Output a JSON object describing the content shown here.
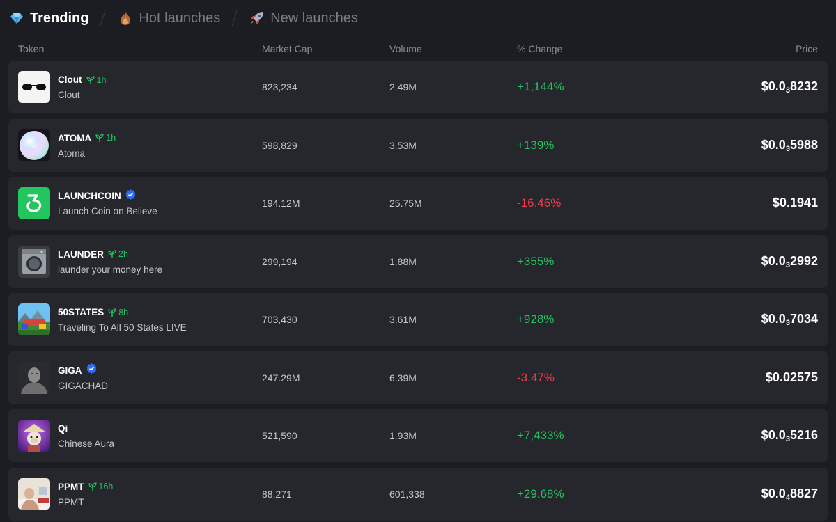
{
  "tabs": [
    {
      "label": "Trending",
      "icon": "gem-icon",
      "active": true
    },
    {
      "label": "Hot launches",
      "icon": "fire-icon",
      "active": false
    },
    {
      "label": "New launches",
      "icon": "rocket-icon",
      "active": false
    }
  ],
  "columns": {
    "token": "Token",
    "market_cap": "Market Cap",
    "volume": "Volume",
    "change": "% Change",
    "price": "Price"
  },
  "colors": {
    "positive": "#22c55e",
    "negative": "#ef3b4e",
    "verified": "#2f6bff",
    "row_bg": "#26272d",
    "page_bg": "#1c1d22"
  },
  "tokens": [
    {
      "symbol": "Clout",
      "age": "1h",
      "verified": false,
      "name": "Clout",
      "market_cap": "823,234",
      "volume": "2.49M",
      "change": "+1,144%",
      "direction": "up",
      "price_prefix": "$0.0",
      "price_sub": "3",
      "price_digits": "8232"
    },
    {
      "symbol": "ATOMA",
      "age": "1h",
      "verified": false,
      "name": "Atoma",
      "market_cap": "598,829",
      "volume": "3.53M",
      "change": "+139%",
      "direction": "up",
      "price_prefix": "$0.0",
      "price_sub": "3",
      "price_digits": "5988"
    },
    {
      "symbol": "LAUNCHCOIN",
      "age": "",
      "verified": true,
      "name": "Launch Coin on Believe",
      "market_cap": "194.12M",
      "volume": "25.75M",
      "change": "-16.46%",
      "direction": "down",
      "price_prefix": "$0.1941",
      "price_sub": "",
      "price_digits": ""
    },
    {
      "symbol": "LAUNDER",
      "age": "2h",
      "verified": false,
      "name": "launder your money here",
      "market_cap": "299,194",
      "volume": "1.88M",
      "change": "+355%",
      "direction": "up",
      "price_prefix": "$0.0",
      "price_sub": "3",
      "price_digits": "2992"
    },
    {
      "symbol": "50STATES",
      "age": "8h",
      "verified": false,
      "name": "Traveling To All 50 States LIVE",
      "market_cap": "703,430",
      "volume": "3.61M",
      "change": "+928%",
      "direction": "up",
      "price_prefix": "$0.0",
      "price_sub": "3",
      "price_digits": "7034"
    },
    {
      "symbol": "GIGA",
      "age": "",
      "verified": true,
      "name": "GIGACHAD",
      "market_cap": "247.29M",
      "volume": "6.39M",
      "change": "-3.47%",
      "direction": "down",
      "price_prefix": "$0.02575",
      "price_sub": "",
      "price_digits": ""
    },
    {
      "symbol": "Qi",
      "age": "",
      "verified": false,
      "name": "Chinese Aura",
      "market_cap": "521,590",
      "volume": "1.93M",
      "change": "+7,433%",
      "direction": "up",
      "price_prefix": "$0.0",
      "price_sub": "3",
      "price_digits": "5216"
    },
    {
      "symbol": "PPMT",
      "age": "16h",
      "verified": false,
      "name": "PPMT",
      "market_cap": "88,271",
      "volume": "601,338",
      "change": "+29.68%",
      "direction": "up",
      "price_prefix": "$0.0",
      "price_sub": "4",
      "price_digits": "8827"
    }
  ]
}
